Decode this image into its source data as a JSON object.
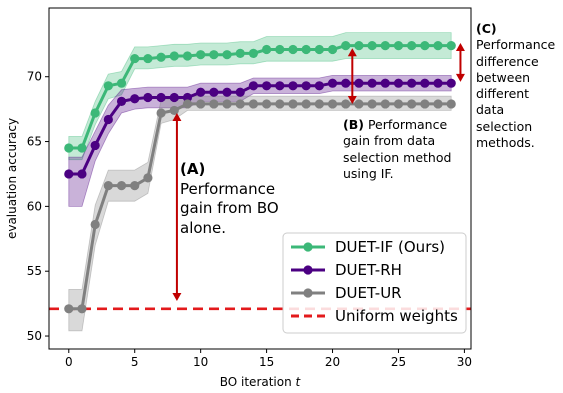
{
  "chart_data": {
    "type": "line",
    "xlabel": "BO iteration",
    "xlabel_var": "t",
    "ylabel": "evaluation accuracy",
    "xlim": [
      -1.5,
      30.5
    ],
    "ylim": [
      49,
      75.3
    ],
    "xticks": [
      0,
      5,
      10,
      15,
      20,
      25,
      30
    ],
    "yticks": [
      50,
      55,
      60,
      65,
      70
    ],
    "grid": false,
    "legend_position": "lower-right",
    "x": [
      0,
      1,
      2,
      3,
      4,
      5,
      6,
      7,
      8,
      9,
      10,
      11,
      12,
      13,
      14,
      15,
      16,
      17,
      18,
      19,
      20,
      21,
      22,
      23,
      24,
      25,
      26,
      27,
      28,
      29
    ],
    "series": [
      {
        "name": "DUET-IF (Ours)",
        "color": "#3cb878",
        "values": [
          64.5,
          64.5,
          67.2,
          69.3,
          69.5,
          71.4,
          71.4,
          71.5,
          71.6,
          71.6,
          71.7,
          71.7,
          71.7,
          71.8,
          71.8,
          72.1,
          72.1,
          72.1,
          72.1,
          72.1,
          72.1,
          72.4,
          72.4,
          72.4,
          72.4,
          72.4,
          72.4,
          72.4,
          72.4,
          72.4
        ],
        "lower": [
          63.6,
          63.6,
          66.3,
          68.3,
          68.6,
          70.6,
          70.6,
          70.7,
          70.8,
          70.8,
          70.9,
          70.9,
          70.9,
          71.0,
          71.0,
          71.2,
          71.2,
          71.2,
          71.2,
          71.2,
          71.2,
          71.4,
          71.4,
          71.4,
          71.4,
          71.4,
          71.4,
          71.4,
          71.4,
          71.4
        ],
        "upper": [
          65.4,
          65.4,
          68.1,
          70.2,
          70.4,
          72.3,
          72.3,
          72.4,
          72.5,
          72.5,
          72.6,
          72.6,
          72.6,
          72.7,
          72.7,
          73.1,
          73.1,
          73.1,
          73.1,
          73.1,
          73.1,
          73.4,
          73.4,
          73.4,
          73.4,
          73.4,
          73.4,
          73.4,
          73.4,
          73.4
        ]
      },
      {
        "name": "DUET-RH",
        "color": "#4b0082",
        "values": [
          62.5,
          62.5,
          64.7,
          66.7,
          68.1,
          68.3,
          68.4,
          68.4,
          68.4,
          68.4,
          68.8,
          68.8,
          68.8,
          68.8,
          69.3,
          69.3,
          69.3,
          69.3,
          69.3,
          69.3,
          69.5,
          69.5,
          69.5,
          69.5,
          69.5,
          69.5,
          69.5,
          69.5,
          69.5,
          69.5
        ],
        "lower": [
          60.0,
          60.0,
          63.5,
          65.6,
          67.2,
          67.5,
          67.6,
          67.6,
          67.6,
          67.6,
          68.1,
          68.1,
          68.1,
          68.1,
          68.7,
          68.7,
          68.7,
          68.7,
          68.7,
          68.7,
          68.9,
          68.9,
          68.9,
          68.9,
          68.9,
          68.9,
          68.9,
          68.9,
          68.9,
          68.9
        ],
        "upper": [
          63.8,
          63.8,
          65.8,
          67.8,
          69.0,
          69.1,
          69.2,
          69.2,
          69.2,
          69.2,
          69.5,
          69.5,
          69.5,
          69.5,
          69.9,
          69.9,
          69.9,
          69.9,
          69.9,
          69.9,
          70.1,
          70.1,
          70.1,
          70.1,
          70.1,
          70.1,
          70.1,
          70.1,
          70.1,
          70.1
        ]
      },
      {
        "name": "DUET-UR",
        "color": "#808080",
        "values": [
          52.1,
          52.1,
          58.6,
          61.6,
          61.6,
          61.6,
          62.2,
          67.2,
          67.4,
          67.9,
          67.9,
          67.9,
          67.9,
          67.9,
          67.9,
          67.9,
          67.9,
          67.9,
          67.9,
          67.9,
          67.9,
          67.9,
          67.9,
          67.9,
          67.9,
          67.9,
          67.9,
          67.9,
          67.9,
          67.9
        ],
        "lower": [
          50.4,
          50.4,
          57.0,
          60.4,
          60.4,
          60.4,
          61.0,
          66.4,
          66.7,
          67.4,
          67.4,
          67.4,
          67.4,
          67.4,
          67.4,
          67.4,
          67.4,
          67.4,
          67.4,
          67.4,
          67.4,
          67.4,
          67.4,
          67.4,
          67.4,
          67.4,
          67.4,
          67.4,
          67.4,
          67.4
        ],
        "upper": [
          53.6,
          53.6,
          60.1,
          62.8,
          62.8,
          62.8,
          63.4,
          68.2,
          68.3,
          68.5,
          68.5,
          68.5,
          68.5,
          68.5,
          68.5,
          68.5,
          68.5,
          68.5,
          68.5,
          68.5,
          68.5,
          68.5,
          68.5,
          68.5,
          68.5,
          68.5,
          68.5,
          68.5,
          68.5,
          68.5
        ]
      }
    ],
    "baseline": {
      "name": "Uniform weights",
      "color": "#e31a1c",
      "value": 52.1,
      "style": "dashed"
    },
    "arrow_color": "#c00000",
    "arrows": [
      {
        "x": 8.2,
        "from": 52.7,
        "to": 67.2
      },
      {
        "x": 21.5,
        "from": 67.9,
        "to": 72.2
      },
      {
        "x": 29.7,
        "from": 69.6,
        "to": 72.6
      }
    ],
    "annotations": [
      {
        "id": "a",
        "label": "(A)",
        "text": "Performance gain from BO alone."
      },
      {
        "id": "b",
        "label": "(B)",
        "text": "Performance gain from data selection method using IF."
      },
      {
        "id": "c",
        "label": "(C)",
        "text": "Performance difference between different data selection methods."
      }
    ]
  }
}
